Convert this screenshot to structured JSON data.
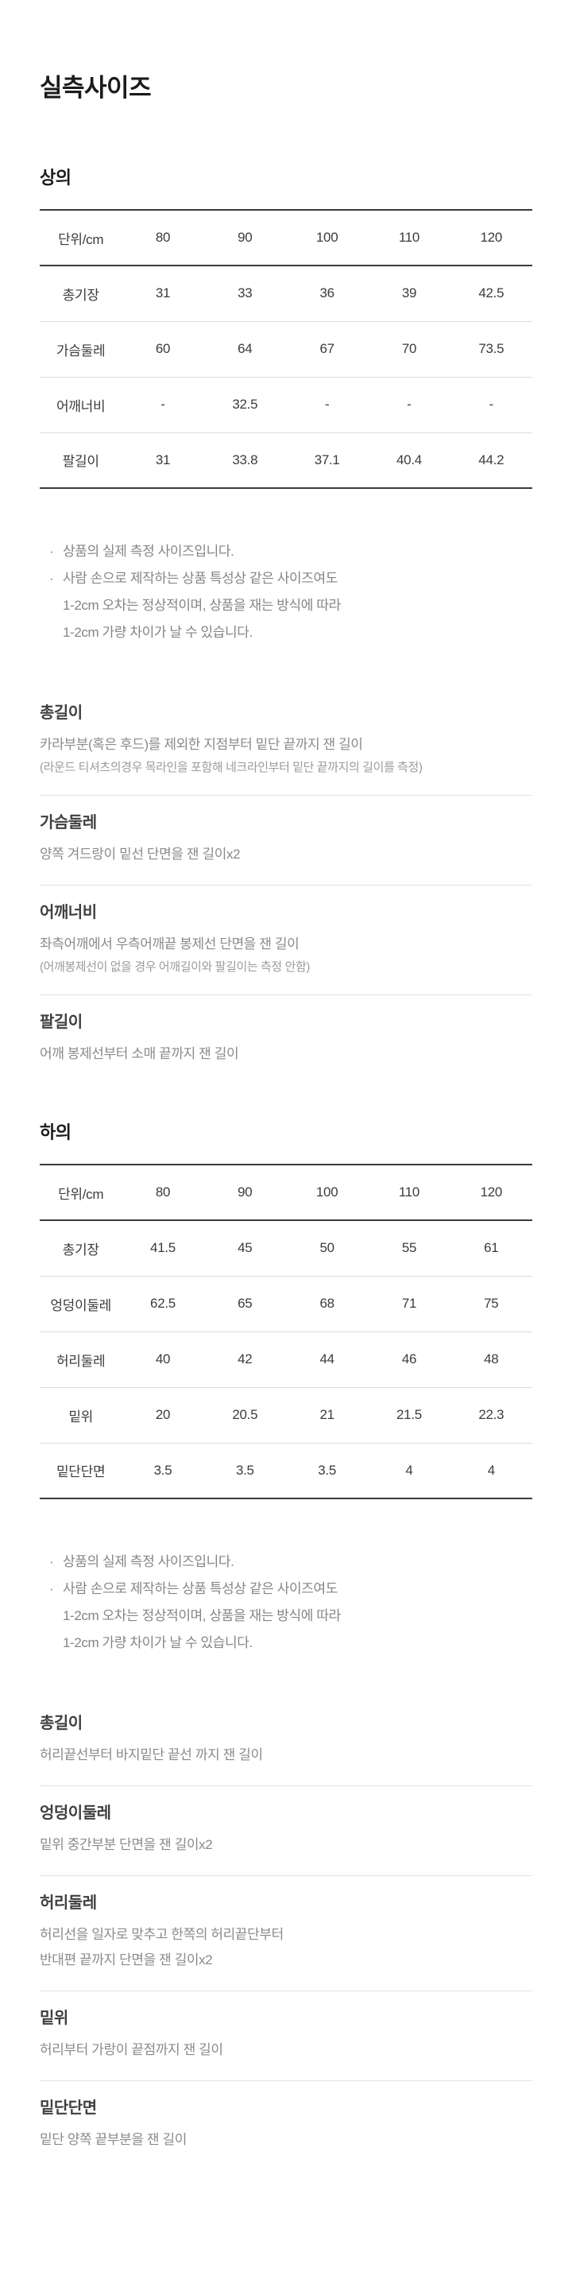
{
  "colors": {
    "text_dark": "#1b1b1b",
    "text_table": "#3c3c3c",
    "text_gray": "#858585",
    "border_dark": "#3b3b3b",
    "border_light": "#dcdcdc",
    "divider": "#e4e4e4"
  },
  "page_title": "실측사이즈",
  "notes": {
    "bullet": "·",
    "note1": "상품의 실제 측정 사이즈입니다.",
    "note2": "사람 손으로 제작하는 상품 특성상 같은 사이즈여도\n1-2cm 오차는 정상적이며, 상품을 재는 방식에 따라\n1-2cm 가량 차이가 날 수 있습니다."
  },
  "tops": {
    "heading": "상의",
    "table": {
      "unit_header": "단위/cm",
      "size_headers": [
        "80",
        "90",
        "100",
        "110",
        "120"
      ],
      "rows": [
        {
          "label": "총기장",
          "values": [
            "31",
            "33",
            "36",
            "39",
            "42.5"
          ]
        },
        {
          "label": "가슴둘레",
          "values": [
            "60",
            "64",
            "67",
            "70",
            "73.5"
          ]
        },
        {
          "label": "어깨너비",
          "values": [
            "-",
            "32.5",
            "-",
            "-",
            "-"
          ]
        },
        {
          "label": "팔길이",
          "values": [
            "31",
            "33.8",
            "37.1",
            "40.4",
            "44.2"
          ]
        }
      ]
    },
    "glossary": [
      {
        "term": "총길이",
        "desc": "카라부분(혹은 후드)를 제외한 지점부터 밑단 끝까지 잰 길이",
        "note": "(라운드 티셔츠의경우 목라인을 포함해 네크라인부터 밑단 끝까지의 길이를 측정)"
      },
      {
        "term": "가슴둘레",
        "desc": "양쪽 겨드랑이 밑선 단면을 잰 길이x2"
      },
      {
        "term": "어깨너비",
        "desc": "좌측어깨에서 우측어깨끝 봉제선 단면을 잰 길이",
        "note": "(어깨봉제선이 없을 경우 어깨길이와 팔길이는 측정 안함)"
      },
      {
        "term": "팔길이",
        "desc": "어깨 봉제선부터 소매 끝까지 잰 길이"
      }
    ]
  },
  "bottoms": {
    "heading": "하의",
    "table": {
      "unit_header": "단위/cm",
      "size_headers": [
        "80",
        "90",
        "100",
        "110",
        "120"
      ],
      "rows": [
        {
          "label": "총기장",
          "values": [
            "41.5",
            "45",
            "50",
            "55",
            "61"
          ]
        },
        {
          "label": "엉덩이둘레",
          "values": [
            "62.5",
            "65",
            "68",
            "71",
            "75"
          ]
        },
        {
          "label": "허리둘레",
          "values": [
            "40",
            "42",
            "44",
            "46",
            "48"
          ]
        },
        {
          "label": "밑위",
          "values": [
            "20",
            "20.5",
            "21",
            "21.5",
            "22.3"
          ]
        },
        {
          "label": "밑단단면",
          "values": [
            "3.5",
            "3.5",
            "3.5",
            "4",
            "4"
          ]
        }
      ]
    },
    "glossary": [
      {
        "term": "총길이",
        "desc": "허리끝선부터 바지밑단 끝선 까지 잰 길이"
      },
      {
        "term": "엉덩이둘레",
        "desc": "밑위 중간부분 단면을 잰 길이x2"
      },
      {
        "term": "허리둘레",
        "desc": "허리선을 일자로 맞추고 한쪽의 허리끝단부터\n반대편 끝까지 단면을 잰 길이x2"
      },
      {
        "term": "밑위",
        "desc": "허리부터 가랑이 끝점까지 잰 길이"
      },
      {
        "term": "밑단단면",
        "desc": "밑단 양쪽 끝부분을 잰 길이"
      }
    ]
  }
}
